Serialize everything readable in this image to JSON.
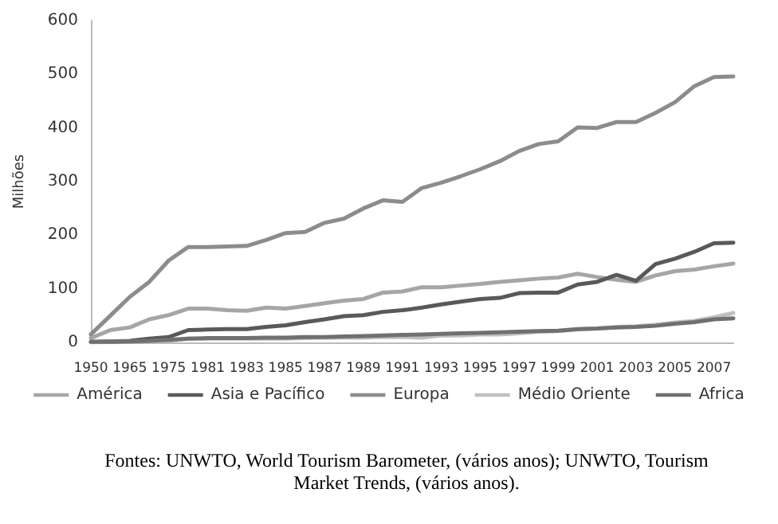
{
  "chart_data": {
    "type": "line",
    "ylabel": "Milhões",
    "categories": [
      "1950",
      null,
      "1965",
      null,
      "1975",
      null,
      "1981",
      null,
      "1983",
      null,
      "1985",
      null,
      "1987",
      null,
      "1989",
      null,
      "1991",
      null,
      "1993",
      null,
      "1995",
      null,
      "1997",
      null,
      "1999",
      null,
      "2001",
      null,
      "2003",
      null,
      "2005",
      null,
      "2007",
      null
    ],
    "series": [
      {
        "name": "América",
        "color": "#a6a6a6",
        "values": [
          8,
          23,
          28,
          43,
          51,
          63,
          63,
          60,
          59,
          65,
          63,
          68,
          73,
          78,
          81,
          93,
          95,
          103,
          103,
          106,
          109,
          113,
          116,
          119,
          121,
          128,
          122,
          117,
          113,
          125,
          133,
          136,
          142,
          147
        ]
      },
      {
        "name": "Asia e Pacífico",
        "color": "#595959",
        "values": [
          1,
          2,
          3,
          7,
          10,
          23,
          24,
          25,
          25,
          29,
          32,
          38,
          43,
          49,
          51,
          57,
          60,
          65,
          71,
          76,
          81,
          83,
          92,
          93,
          93,
          108,
          113,
          126,
          115,
          146,
          156,
          169,
          185,
          186
        ]
      },
      {
        "name": "Europa",
        "color": "#8c8c8c",
        "values": [
          15,
          50,
          85,
          113,
          153,
          178,
          178,
          179,
          180,
          191,
          204,
          206,
          223,
          231,
          250,
          265,
          262,
          288,
          298,
          310,
          323,
          338,
          357,
          370,
          375,
          401,
          400,
          411,
          411,
          428,
          448,
          478,
          495,
          496
        ]
      },
      {
        "name": "Médio Oriente",
        "color": "#bfbfbf",
        "values": [
          0,
          1,
          2,
          2,
          3,
          7,
          7,
          7,
          7,
          7,
          7,
          8,
          9,
          9,
          9,
          10,
          10,
          9,
          13,
          13,
          15,
          15,
          17,
          20,
          21,
          24,
          26,
          29,
          30,
          33,
          37,
          40,
          47,
          55
        ]
      },
      {
        "name": "Africa",
        "color": "#707070",
        "values": [
          1,
          1,
          2,
          3,
          5,
          7,
          8,
          8,
          8,
          9,
          9,
          10,
          10,
          11,
          12,
          13,
          14,
          15,
          16,
          17,
          18,
          19,
          20,
          21,
          22,
          25,
          26,
          28,
          29,
          31,
          35,
          38,
          43,
          45
        ]
      }
    ],
    "ylim": [
      0,
      600
    ],
    "yticks": [
      0,
      100,
      200,
      300,
      400,
      500,
      600
    ],
    "grid": false,
    "legend": "bottom",
    "marker": "none",
    "line_style": "solid",
    "annotations": [
      "Fontes: UNWTO, World Tourism Barometer, (vários anos); UNWTO, Tourism Market Trends, (vários anos)."
    ]
  }
}
